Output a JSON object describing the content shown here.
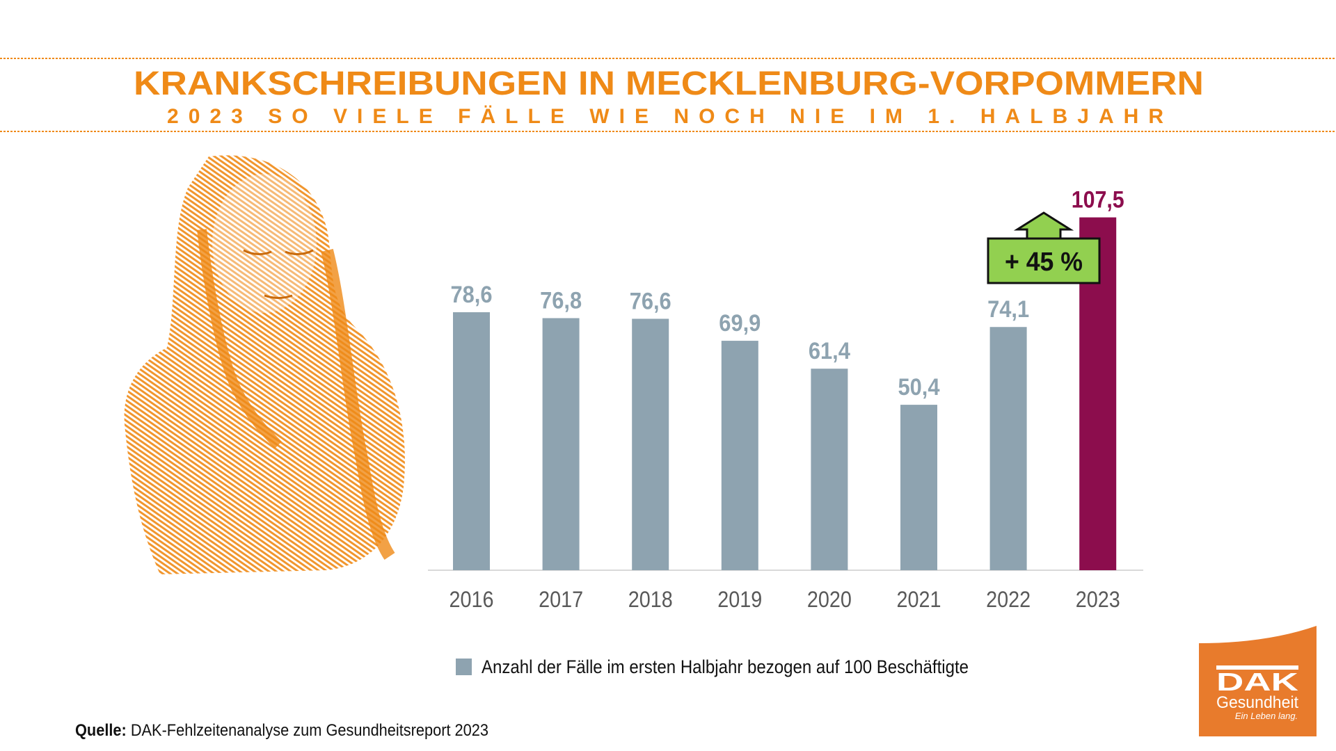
{
  "header": {
    "title": "KRANKSCHREIBUNGEN IN MECKLENBURG-VORPOMMERN",
    "subtitle": "2023 SO VIELE FÄLLE WIE NOCH NIE IM 1. HALBJAHR"
  },
  "chart_data": {
    "type": "bar",
    "title": "Krankschreibungen in Mecklenburg-Vorpommern",
    "categories": [
      "2016",
      "2017",
      "2018",
      "2019",
      "2020",
      "2021",
      "2022",
      "2023"
    ],
    "values": [
      78.6,
      76.8,
      76.6,
      69.9,
      61.4,
      50.4,
      74.1,
      107.5
    ],
    "value_labels": [
      "78,6",
      "76,8",
      "76,6",
      "69,9",
      "61,4",
      "50,4",
      "74,1",
      "107,5"
    ],
    "highlight_index": 7,
    "ylim": [
      0,
      110
    ],
    "grid": false,
    "legend": "bottom",
    "series_name": "Anzahl der Fälle im ersten Halbjahr bezogen auf 100 Beschäftigte",
    "annotation": "+ 45 %",
    "colors": {
      "bar": "#8ea3b0",
      "highlight": "#8c0d4d",
      "label": "#8ea3b0",
      "annotation_bg": "#92d050"
    }
  },
  "source": {
    "label": "Quelle:",
    "text": " DAK-Fehlzeitenanalyse zum Gesundheitsreport 2023"
  },
  "logo": {
    "brand": "DAK",
    "name": "Gesundheit",
    "tagline": "Ein Leben lang."
  },
  "colors": {
    "accent": "#ef8a17",
    "logo_bg": "#e87b2c"
  }
}
